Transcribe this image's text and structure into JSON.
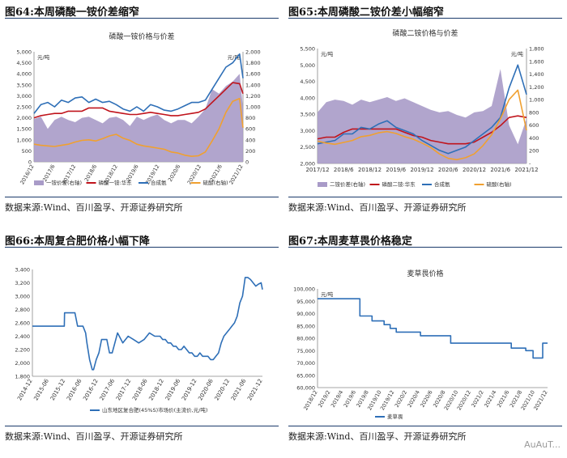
{
  "figures": [
    {
      "number_title": "图64:本周磷酸一铵价差缩窄",
      "source": "数据来源:Wind、百川盈孚、开源证券研究所"
    },
    {
      "number_title": "图65:本周磷酸二铵价差小幅缩窄",
      "source": "数据来源:Wind、百川盈孚、开源证券研究所"
    },
    {
      "number_title": "图66:本周复合肥价格小幅下降",
      "source": "数据来源:Wind、百川盈孚、开源证券研究所"
    },
    {
      "number_title": "图67:本周麦草畏价格稳定",
      "source": "数据来源:Wind、百川盈孚、开源证券研究所"
    }
  ],
  "watermark": "AuAuT...",
  "chart_data": [
    {
      "type": "line",
      "title": "磷酸一铵价格与价差",
      "left_unit": "元/吨",
      "right_unit": "元/吨",
      "ylim": [
        0,
        5000
      ],
      "y2lim": [
        0,
        2000
      ],
      "yticks": [
        "0",
        "500",
        "1,000",
        "1,500",
        "2,000",
        "2,500",
        "3,000",
        "3,500",
        "4,000",
        "4,500",
        "5,000"
      ],
      "y2ticks": [
        "0",
        "200",
        "400",
        "600",
        "800",
        "1,000",
        "1,200",
        "1,400",
        "1,600",
        "1,800",
        "2,000"
      ],
      "xticks": [
        "2016/12",
        "2017/6",
        "2017/12",
        "2018/6",
        "2018/12",
        "2019/6",
        "2019/12",
        "2020/6",
        "2020/12",
        "2021/6",
        "2021/12"
      ],
      "x": [
        0,
        2,
        4,
        6,
        8,
        10,
        12,
        14,
        16,
        18,
        20,
        22,
        24,
        26,
        28,
        30,
        32,
        34,
        36,
        38,
        40,
        42,
        44,
        46,
        48,
        50,
        52,
        54,
        56,
        58,
        60,
        61
      ],
      "series": [
        {
          "name": "一铵价差(右轴)",
          "kind": "area",
          "color": "#a99bc8",
          "axis": "right",
          "values": [
            780,
            820,
            600,
            760,
            820,
            760,
            720,
            800,
            820,
            760,
            700,
            800,
            820,
            760,
            650,
            820,
            760,
            820,
            860,
            760,
            700,
            760,
            760,
            700,
            820,
            960,
            1320,
            1240,
            1380,
            1460,
            1600,
            980
          ]
        },
        {
          "name": "磷酸一铵:华东",
          "kind": "line",
          "color": "#c0141c",
          "axis": "left",
          "values": [
            2000,
            2100,
            2150,
            2200,
            2200,
            2300,
            2300,
            2300,
            2450,
            2450,
            2450,
            2300,
            2250,
            2200,
            2150,
            2150,
            2200,
            2250,
            2200,
            2150,
            2100,
            2100,
            2150,
            2200,
            2250,
            2400,
            2700,
            3000,
            3300,
            3600,
            3550,
            3100
          ]
        },
        {
          "name": "合成氨",
          "kind": "line",
          "color": "#2e6fb7",
          "axis": "left",
          "values": [
            2200,
            2600,
            2700,
            2500,
            2800,
            2700,
            2900,
            2950,
            2700,
            2850,
            2700,
            2750,
            2600,
            2400,
            2300,
            2500,
            2300,
            2600,
            2500,
            2350,
            2300,
            2400,
            2550,
            2700,
            2700,
            2800,
            3300,
            3800,
            4300,
            4500,
            4900,
            3800
          ]
        },
        {
          "name": "硫酸(右轴)",
          "kind": "line",
          "color": "#f0a030",
          "axis": "right",
          "values": [
            320,
            300,
            290,
            280,
            300,
            320,
            360,
            390,
            400,
            380,
            420,
            470,
            500,
            430,
            390,
            320,
            290,
            270,
            250,
            230,
            180,
            160,
            120,
            100,
            110,
            180,
            380,
            600,
            900,
            1100,
            1150,
            620
          ]
        }
      ]
    },
    {
      "type": "line",
      "title": "磷酸二铵价格与价差",
      "left_unit": "元/吨",
      "right_unit": "元/吨",
      "ylim": [
        2000,
        5500
      ],
      "y2lim": [
        0,
        1800
      ],
      "yticks": [
        "2,000",
        "2,500",
        "3,000",
        "3,500",
        "4,000",
        "4,500",
        "5,000",
        "5,500"
      ],
      "y2ticks": [
        "-",
        "200",
        "400",
        "600",
        "800",
        "1,000",
        "1,200",
        "1,400",
        "1,600",
        "1,800"
      ],
      "xticks": [
        "2017/12",
        "2018/6",
        "2018/12",
        "2019/6",
        "2019/12",
        "2020/6",
        "2020/12",
        "2021/6",
        "2021/12"
      ],
      "x": [
        0,
        2,
        4,
        6,
        8,
        10,
        12,
        14,
        16,
        18,
        20,
        22,
        24,
        26,
        28,
        30,
        32,
        34,
        36,
        38,
        40,
        42,
        44,
        46,
        48
      ],
      "series": [
        {
          "name": "二铵价差(右轴)",
          "kind": "area",
          "color": "#a99bc8",
          "axis": "right",
          "values": [
            800,
            960,
            1000,
            980,
            920,
            1000,
            960,
            1000,
            1040,
            980,
            1020,
            960,
            900,
            840,
            800,
            820,
            760,
            720,
            800,
            820,
            900,
            1480,
            600,
            300,
            700
          ]
        },
        {
          "name": "磷酸二铵:华东",
          "kind": "line",
          "color": "#c0141c",
          "axis": "left",
          "values": [
            2750,
            2800,
            2800,
            2950,
            3050,
            3050,
            3050,
            3050,
            3050,
            3050,
            2950,
            2850,
            2800,
            2700,
            2650,
            2600,
            2600,
            2600,
            2650,
            2800,
            2950,
            3150,
            3400,
            3450,
            3400
          ]
        },
        {
          "name": "合成氨",
          "kind": "line",
          "color": "#2e6fb7",
          "axis": "left",
          "values": [
            2600,
            2650,
            2700,
            2900,
            2900,
            3100,
            3050,
            3200,
            3300,
            3100,
            3000,
            2900,
            2700,
            2550,
            2400,
            2300,
            2400,
            2500,
            2700,
            2900,
            3100,
            3400,
            4300,
            5000,
            4100
          ]
        },
        {
          "name": "硫酸(右轴)",
          "kind": "line",
          "color": "#f0a030",
          "axis": "right",
          "values": [
            350,
            320,
            300,
            330,
            360,
            420,
            440,
            480,
            500,
            470,
            420,
            380,
            320,
            250,
            150,
            80,
            60,
            90,
            150,
            280,
            450,
            700,
            1000,
            1150,
            520
          ]
        }
      ]
    },
    {
      "type": "line",
      "title": "",
      "ylim": [
        1800,
        3400
      ],
      "yticks": [
        "1,800",
        "2,000",
        "2,200",
        "2,400",
        "2,600",
        "2,800",
        "3,000",
        "3,200",
        "3,400"
      ],
      "xticks": [
        "2014-12",
        "2015-06",
        "2015-12",
        "2016-06",
        "2016-12",
        "2017-06",
        "2017-12",
        "2018-06",
        "2018-12",
        "2019-06",
        "2019-12",
        "2020-06",
        "2020-12",
        "2021-06",
        "2021-12"
      ],
      "x": [
        0,
        5,
        10,
        12,
        12.1,
        16,
        17,
        18,
        19,
        20,
        20.5,
        21.5,
        22.5,
        23,
        24,
        25,
        26,
        28,
        29,
        30,
        31,
        32,
        34,
        36,
        38,
        40,
        42,
        44,
        46,
        47,
        48,
        49,
        50,
        51,
        52,
        53,
        54,
        55,
        56,
        57,
        58,
        59,
        60,
        61,
        62,
        63,
        64,
        65,
        66,
        67,
        68,
        69,
        70,
        71,
        72,
        73,
        74,
        75,
        76,
        77,
        78,
        79,
        80,
        81,
        82,
        83,
        84,
        85,
        86,
        86.5
      ],
      "series": [
        {
          "name": "山东地区复合肥(45%S)市场价(主流价,元/吨)",
          "kind": "line",
          "color": "#2e6fb7",
          "axis": "left",
          "values": [
            2550,
            2550,
            2550,
            2550,
            2750,
            2750,
            2550,
            2550,
            2550,
            2450,
            2300,
            2050,
            1900,
            1900,
            2050,
            2150,
            2350,
            2350,
            2150,
            2150,
            2300,
            2450,
            2300,
            2400,
            2350,
            2300,
            2350,
            2450,
            2400,
            2400,
            2400,
            2350,
            2350,
            2300,
            2300,
            2250,
            2250,
            2200,
            2200,
            2250,
            2200,
            2150,
            2150,
            2100,
            2100,
            2150,
            2100,
            2100,
            2100,
            2050,
            2050,
            2100,
            2150,
            2300,
            2400,
            2450,
            2500,
            2550,
            2600,
            2700,
            2900,
            3000,
            3280,
            3280,
            3250,
            3200,
            3150,
            3180,
            3200,
            3100
          ]
        }
      ]
    },
    {
      "type": "line",
      "title": "麦草畏价格",
      "left_unit": "元/吨",
      "ylim": [
        60000,
        100000
      ],
      "yticks": [
        "60,000",
        "65,000",
        "70,000",
        "75,000",
        "80,000",
        "85,000",
        "90,000",
        "95,000",
        "100,000"
      ],
      "xticks": [
        "2018/12",
        "2019/2",
        "2019/4",
        "2019/6",
        "2019/8",
        "2019/10",
        "2019/12",
        "2020/2",
        "2020/4",
        "2020/6",
        "2020/8",
        "2020/10",
        "2020/12",
        "2021/2",
        "2021/4",
        "2021/6",
        "2021/8",
        "2021/10",
        "2021/12"
      ],
      "x": [
        0,
        3.5,
        3.5,
        4.5,
        4.5,
        5.5,
        5.5,
        6,
        6,
        6.5,
        6.5,
        8.5,
        8.5,
        11,
        11,
        16,
        16,
        17.2,
        17.2,
        17.8,
        17.8,
        18.6,
        18.6,
        19
      ],
      "series": [
        {
          "name": "麦草畏",
          "kind": "line",
          "color": "#2e6fb7",
          "axis": "left",
          "values": [
            96000,
            96000,
            89000,
            89000,
            87000,
            87000,
            85500,
            85500,
            84000,
            84000,
            82500,
            82500,
            81000,
            81000,
            78000,
            78000,
            76000,
            76000,
            75000,
            75000,
            72000,
            72000,
            78000,
            78000
          ]
        }
      ]
    }
  ]
}
